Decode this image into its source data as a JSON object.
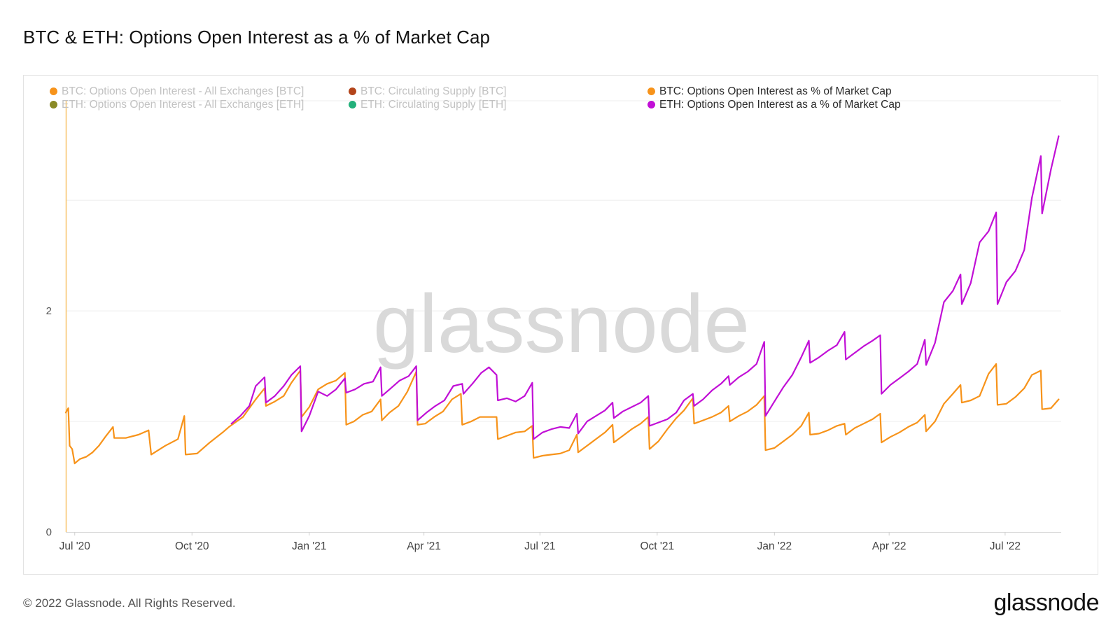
{
  "title": "BTC & ETH: Options Open Interest as a % of Market Cap",
  "footer": "© 2022 Glassnode. All Rights Reserved.",
  "brand": "glassnode",
  "watermark": "glassnode",
  "legend": [
    {
      "label": "BTC: Options Open Interest - All Exchanges [BTC]",
      "color": "#f7931a",
      "active": false
    },
    {
      "label": "BTC: Circulating Supply [BTC]",
      "color": "#b3441a",
      "active": false
    },
    {
      "label": "BTC: Options Open Interest as % of Market Cap",
      "color": "#f7931a",
      "active": true
    },
    {
      "label": "ETH: Options Open Interest - All Exchanges [ETH]",
      "color": "#8a8a26",
      "active": false
    },
    {
      "label": "ETH: Circulating Supply [ETH]",
      "color": "#22b07a",
      "active": false
    },
    {
      "label": "ETH: Options Open Interest as a % of Market Cap",
      "color": "#c10fd6",
      "active": true
    }
  ],
  "chart_data": {
    "type": "line",
    "title": "BTC & ETH: Options Open Interest as a % of Market Cap",
    "xlabel": "",
    "ylabel": "",
    "x_ticks": [
      "Jul '20",
      "Oct '20",
      "Jan '21",
      "Apr '21",
      "Jul '21",
      "Oct '21",
      "Jan '22",
      "Apr '22",
      "Jul '22"
    ],
    "y_ticks": [
      0,
      2
    ],
    "ylim": [
      0,
      3.9
    ],
    "xlim": [
      "2020-06-24",
      "2022-08-14"
    ],
    "grid": true,
    "legend_position": "top",
    "series": [
      {
        "name": "BTC: Options Open Interest as % of Market Cap",
        "color": "#f7931a",
        "points": [
          [
            "2020-06-24",
            1.08
          ],
          [
            "2020-06-26",
            1.12
          ],
          [
            "2020-06-27",
            0.78
          ],
          [
            "2020-06-29",
            0.75
          ],
          [
            "2020-07-01",
            0.62
          ],
          [
            "2020-07-05",
            0.66
          ],
          [
            "2020-07-10",
            0.68
          ],
          [
            "2020-07-15",
            0.72
          ],
          [
            "2020-07-20",
            0.78
          ],
          [
            "2020-07-25",
            0.86
          ],
          [
            "2020-07-31",
            0.95
          ],
          [
            "2020-08-01",
            0.85
          ],
          [
            "2020-08-10",
            0.85
          ],
          [
            "2020-08-20",
            0.88
          ],
          [
            "2020-08-28",
            0.92
          ],
          [
            "2020-08-30",
            0.7
          ],
          [
            "2020-09-10",
            0.78
          ],
          [
            "2020-09-20",
            0.84
          ],
          [
            "2020-09-25",
            1.05
          ],
          [
            "2020-09-26",
            0.7
          ],
          [
            "2020-10-05",
            0.71
          ],
          [
            "2020-10-15",
            0.81
          ],
          [
            "2020-10-25",
            0.9
          ],
          [
            "2020-10-30",
            0.95
          ],
          [
            "2020-11-05",
            1.0
          ],
          [
            "2020-11-10",
            1.04
          ],
          [
            "2020-11-15",
            1.12
          ],
          [
            "2020-11-20",
            1.2
          ],
          [
            "2020-11-27",
            1.3
          ],
          [
            "2020-11-28",
            1.14
          ],
          [
            "2020-12-05",
            1.18
          ],
          [
            "2020-12-12",
            1.23
          ],
          [
            "2020-12-18",
            1.35
          ],
          [
            "2020-12-25",
            1.46
          ],
          [
            "2020-12-26",
            1.04
          ],
          [
            "2021-01-01",
            1.13
          ],
          [
            "2021-01-08",
            1.29
          ],
          [
            "2021-01-15",
            1.34
          ],
          [
            "2021-01-22",
            1.37
          ],
          [
            "2021-01-29",
            1.44
          ],
          [
            "2021-01-30",
            0.97
          ],
          [
            "2021-02-05",
            1.0
          ],
          [
            "2021-02-12",
            1.06
          ],
          [
            "2021-02-19",
            1.09
          ],
          [
            "2021-02-26",
            1.2
          ],
          [
            "2021-02-27",
            1.01
          ],
          [
            "2021-03-05",
            1.08
          ],
          [
            "2021-03-12",
            1.14
          ],
          [
            "2021-03-19",
            1.27
          ],
          [
            "2021-03-26",
            1.45
          ],
          [
            "2021-03-27",
            0.97
          ],
          [
            "2021-04-02",
            0.98
          ],
          [
            "2021-04-09",
            1.04
          ],
          [
            "2021-04-16",
            1.09
          ],
          [
            "2021-04-23",
            1.2
          ],
          [
            "2021-04-30",
            1.25
          ],
          [
            "2021-05-01",
            0.97
          ],
          [
            "2021-05-08",
            1.0
          ],
          [
            "2021-05-15",
            1.04
          ],
          [
            "2021-05-22",
            1.04
          ],
          [
            "2021-05-28",
            1.04
          ],
          [
            "2021-05-29",
            0.84
          ],
          [
            "2021-06-05",
            0.87
          ],
          [
            "2021-06-12",
            0.9
          ],
          [
            "2021-06-19",
            0.91
          ],
          [
            "2021-06-25",
            0.96
          ],
          [
            "2021-06-26",
            0.67
          ],
          [
            "2021-07-03",
            0.69
          ],
          [
            "2021-07-10",
            0.7
          ],
          [
            "2021-07-17",
            0.71
          ],
          [
            "2021-07-24",
            0.74
          ],
          [
            "2021-07-30",
            0.88
          ],
          [
            "2021-07-31",
            0.72
          ],
          [
            "2021-08-07",
            0.78
          ],
          [
            "2021-08-14",
            0.84
          ],
          [
            "2021-08-21",
            0.9
          ],
          [
            "2021-08-27",
            0.97
          ],
          [
            "2021-08-28",
            0.81
          ],
          [
            "2021-09-04",
            0.87
          ],
          [
            "2021-09-11",
            0.93
          ],
          [
            "2021-09-18",
            0.98
          ],
          [
            "2021-09-24",
            1.04
          ],
          [
            "2021-09-25",
            0.75
          ],
          [
            "2021-10-02",
            0.82
          ],
          [
            "2021-10-09",
            0.93
          ],
          [
            "2021-10-16",
            1.03
          ],
          [
            "2021-10-22",
            1.1
          ],
          [
            "2021-10-29",
            1.21
          ],
          [
            "2021-10-30",
            0.98
          ],
          [
            "2021-11-06",
            1.01
          ],
          [
            "2021-11-13",
            1.04
          ],
          [
            "2021-11-20",
            1.08
          ],
          [
            "2021-11-26",
            1.14
          ],
          [
            "2021-11-27",
            1.0
          ],
          [
            "2021-12-04",
            1.05
          ],
          [
            "2021-12-11",
            1.09
          ],
          [
            "2021-12-18",
            1.15
          ],
          [
            "2021-12-24",
            1.23
          ],
          [
            "2021-12-25",
            0.74
          ],
          [
            "2022-01-01",
            0.76
          ],
          [
            "2022-01-08",
            0.82
          ],
          [
            "2022-01-15",
            0.88
          ],
          [
            "2022-01-22",
            0.96
          ],
          [
            "2022-01-28",
            1.08
          ],
          [
            "2022-01-29",
            0.88
          ],
          [
            "2022-02-05",
            0.89
          ],
          [
            "2022-02-12",
            0.92
          ],
          [
            "2022-02-19",
            0.96
          ],
          [
            "2022-02-25",
            0.98
          ],
          [
            "2022-02-26",
            0.88
          ],
          [
            "2022-03-05",
            0.94
          ],
          [
            "2022-03-12",
            0.98
          ],
          [
            "2022-03-19",
            1.02
          ],
          [
            "2022-03-25",
            1.07
          ],
          [
            "2022-03-26",
            0.81
          ],
          [
            "2022-04-02",
            0.86
          ],
          [
            "2022-04-09",
            0.9
          ],
          [
            "2022-04-16",
            0.95
          ],
          [
            "2022-04-23",
            0.99
          ],
          [
            "2022-04-29",
            1.06
          ],
          [
            "2022-04-30",
            0.91
          ],
          [
            "2022-05-07",
            1.0
          ],
          [
            "2022-05-14",
            1.16
          ],
          [
            "2022-05-21",
            1.25
          ],
          [
            "2022-05-27",
            1.33
          ],
          [
            "2022-05-28",
            1.17
          ],
          [
            "2022-06-04",
            1.19
          ],
          [
            "2022-06-11",
            1.23
          ],
          [
            "2022-06-18",
            1.43
          ],
          [
            "2022-06-24",
            1.52
          ],
          [
            "2022-06-25",
            1.15
          ],
          [
            "2022-07-02",
            1.16
          ],
          [
            "2022-07-09",
            1.22
          ],
          [
            "2022-07-16",
            1.3
          ],
          [
            "2022-07-22",
            1.42
          ],
          [
            "2022-07-29",
            1.46
          ],
          [
            "2022-07-30",
            1.11
          ],
          [
            "2022-08-06",
            1.12
          ],
          [
            "2022-08-12",
            1.2
          ]
        ]
      },
      {
        "name": "ETH: Options Open Interest as a % of Market Cap",
        "color": "#c10fd6",
        "points": [
          [
            "2020-11-01",
            0.98
          ],
          [
            "2020-11-08",
            1.05
          ],
          [
            "2020-11-15",
            1.14
          ],
          [
            "2020-11-20",
            1.32
          ],
          [
            "2020-11-27",
            1.4
          ],
          [
            "2020-11-28",
            1.17
          ],
          [
            "2020-12-05",
            1.23
          ],
          [
            "2020-12-12",
            1.32
          ],
          [
            "2020-12-18",
            1.42
          ],
          [
            "2020-12-25",
            1.5
          ],
          [
            "2020-12-26",
            0.91
          ],
          [
            "2021-01-01",
            1.05
          ],
          [
            "2021-01-08",
            1.27
          ],
          [
            "2021-01-15",
            1.23
          ],
          [
            "2021-01-22",
            1.29
          ],
          [
            "2021-01-29",
            1.39
          ],
          [
            "2021-01-30",
            1.26
          ],
          [
            "2021-02-06",
            1.29
          ],
          [
            "2021-02-13",
            1.34
          ],
          [
            "2021-02-20",
            1.36
          ],
          [
            "2021-02-26",
            1.49
          ],
          [
            "2021-02-27",
            1.23
          ],
          [
            "2021-03-06",
            1.3
          ],
          [
            "2021-03-13",
            1.37
          ],
          [
            "2021-03-20",
            1.41
          ],
          [
            "2021-03-26",
            1.5
          ],
          [
            "2021-03-27",
            1.01
          ],
          [
            "2021-04-03",
            1.08
          ],
          [
            "2021-04-10",
            1.14
          ],
          [
            "2021-04-17",
            1.19
          ],
          [
            "2021-04-24",
            1.32
          ],
          [
            "2021-05-01",
            1.34
          ],
          [
            "2021-05-02",
            1.25
          ],
          [
            "2021-05-09",
            1.34
          ],
          [
            "2021-05-16",
            1.44
          ],
          [
            "2021-05-22",
            1.49
          ],
          [
            "2021-05-28",
            1.42
          ],
          [
            "2021-05-29",
            1.19
          ],
          [
            "2021-06-05",
            1.21
          ],
          [
            "2021-06-12",
            1.18
          ],
          [
            "2021-06-19",
            1.23
          ],
          [
            "2021-06-25",
            1.35
          ],
          [
            "2021-06-26",
            0.84
          ],
          [
            "2021-07-03",
            0.9
          ],
          [
            "2021-07-10",
            0.93
          ],
          [
            "2021-07-17",
            0.95
          ],
          [
            "2021-07-24",
            0.94
          ],
          [
            "2021-07-30",
            1.07
          ],
          [
            "2021-07-31",
            0.89
          ],
          [
            "2021-08-07",
            1.0
          ],
          [
            "2021-08-14",
            1.05
          ],
          [
            "2021-08-21",
            1.1
          ],
          [
            "2021-08-27",
            1.17
          ],
          [
            "2021-08-28",
            1.03
          ],
          [
            "2021-09-04",
            1.09
          ],
          [
            "2021-09-11",
            1.13
          ],
          [
            "2021-09-18",
            1.17
          ],
          [
            "2021-09-24",
            1.23
          ],
          [
            "2021-09-25",
            0.96
          ],
          [
            "2021-10-02",
            0.99
          ],
          [
            "2021-10-09",
            1.02
          ],
          [
            "2021-10-16",
            1.08
          ],
          [
            "2021-10-22",
            1.19
          ],
          [
            "2021-10-29",
            1.25
          ],
          [
            "2021-10-30",
            1.14
          ],
          [
            "2021-11-06",
            1.2
          ],
          [
            "2021-11-13",
            1.28
          ],
          [
            "2021-11-20",
            1.34
          ],
          [
            "2021-11-26",
            1.41
          ],
          [
            "2021-11-27",
            1.33
          ],
          [
            "2021-12-04",
            1.4
          ],
          [
            "2021-12-11",
            1.45
          ],
          [
            "2021-12-18",
            1.52
          ],
          [
            "2021-12-24",
            1.72
          ],
          [
            "2021-12-25",
            1.05
          ],
          [
            "2022-01-01",
            1.18
          ],
          [
            "2022-01-08",
            1.31
          ],
          [
            "2022-01-15",
            1.42
          ],
          [
            "2022-01-22",
            1.58
          ],
          [
            "2022-01-28",
            1.73
          ],
          [
            "2022-01-29",
            1.53
          ],
          [
            "2022-02-05",
            1.58
          ],
          [
            "2022-02-12",
            1.64
          ],
          [
            "2022-02-19",
            1.69
          ],
          [
            "2022-02-25",
            1.81
          ],
          [
            "2022-02-26",
            1.56
          ],
          [
            "2022-03-05",
            1.62
          ],
          [
            "2022-03-12",
            1.68
          ],
          [
            "2022-03-19",
            1.73
          ],
          [
            "2022-03-25",
            1.78
          ],
          [
            "2022-03-26",
            1.25
          ],
          [
            "2022-04-02",
            1.33
          ],
          [
            "2022-04-09",
            1.39
          ],
          [
            "2022-04-16",
            1.45
          ],
          [
            "2022-04-23",
            1.52
          ],
          [
            "2022-04-29",
            1.74
          ],
          [
            "2022-04-30",
            1.51
          ],
          [
            "2022-05-07",
            1.71
          ],
          [
            "2022-05-14",
            2.08
          ],
          [
            "2022-05-21",
            2.18
          ],
          [
            "2022-05-27",
            2.33
          ],
          [
            "2022-05-28",
            2.06
          ],
          [
            "2022-06-04",
            2.25
          ],
          [
            "2022-06-11",
            2.62
          ],
          [
            "2022-06-18",
            2.72
          ],
          [
            "2022-06-24",
            2.89
          ],
          [
            "2022-06-25",
            2.06
          ],
          [
            "2022-07-02",
            2.26
          ],
          [
            "2022-07-09",
            2.36
          ],
          [
            "2022-07-16",
            2.55
          ],
          [
            "2022-07-22",
            3.02
          ],
          [
            "2022-07-29",
            3.4
          ],
          [
            "2022-07-30",
            2.88
          ],
          [
            "2022-08-06",
            3.28
          ],
          [
            "2022-08-12",
            3.58
          ]
        ]
      }
    ]
  }
}
